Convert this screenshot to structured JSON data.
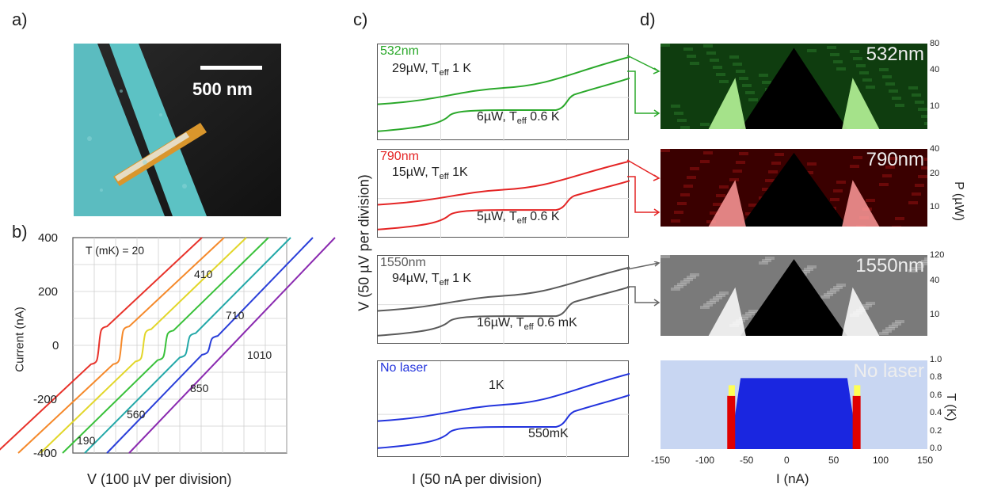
{
  "panels": {
    "a": "a)",
    "b": "b)",
    "c": "c)",
    "d": "d)"
  },
  "sem": {
    "scale_label": "500 nm"
  },
  "panel_b": {
    "temp_header": "T (mK) = 20",
    "temp_labels": [
      "190",
      "410",
      "560",
      "710",
      "850",
      "1010"
    ],
    "ylabel": "Current (nA)",
    "xlabel": "V (100 µV per division)",
    "yticks": [
      "400",
      "200",
      "0",
      "-200",
      "-400"
    ]
  },
  "chart_data": [
    {
      "type": "line",
      "title": "",
      "ylabel": "Current (nA)",
      "xlabel": "V (100 µV per division)",
      "ylim": [
        -400,
        400
      ],
      "yticks": [
        400,
        200,
        0,
        -200,
        -400
      ],
      "series": [
        {
          "name": "20",
          "color": "#e8322a",
          "plateau": 70
        },
        {
          "name": "190",
          "color": "#f5892a",
          "plateau": 70
        },
        {
          "name": "410",
          "color": "#e2d62a",
          "plateau": 60
        },
        {
          "name": "560",
          "color": "#39c13a",
          "plateau": 55
        },
        {
          "name": "710",
          "color": "#22a8a8",
          "plateau": 45
        },
        {
          "name": "850",
          "color": "#2a3fd9",
          "plateau": 35
        },
        {
          "name": "1010",
          "color": "#8a2ab0",
          "plateau": 0
        }
      ]
    },
    {
      "type": "line",
      "xlabel": "I (50 nA per division)",
      "ylabel": "V (50 µV per division)",
      "series": [
        {
          "name": "532nm",
          "color": "#2aa82a",
          "upper": "29µW, T",
          "upper_sub": "eff",
          "upper_end": " 1 K",
          "lower": "6µW, T",
          "lower_sub": "eff",
          "lower_end": " 0.6 K"
        },
        {
          "name": "790nm",
          "color": "#e42424",
          "upper": "15µW, T",
          "upper_sub": "eff",
          "upper_end": " 1K",
          "lower": "5µW, T",
          "lower_sub": "eff",
          "lower_end": " 0.6 K"
        },
        {
          "name": "1550nm",
          "color": "#5a5a5a",
          "upper": "94µW, T",
          "upper_sub": "eff",
          "upper_end": " 1 K",
          "lower": "16µW, T",
          "lower_sub": "eff",
          "lower_end": " 0.6 mK"
        },
        {
          "name": "No laser",
          "color": "#2233dd",
          "upper": "1K",
          "upper_sub": "",
          "upper_end": "",
          "lower": "550mK",
          "lower_sub": "",
          "lower_end": ""
        }
      ]
    },
    {
      "type": "heatmap",
      "xlabel": "I (nA)",
      "xlim": [
        -150,
        150
      ],
      "xticks": [
        "-150",
        "-100",
        "-50",
        "0",
        "50",
        "100",
        "150"
      ],
      "maps": [
        {
          "label": "532nm",
          "ytick_labels": [
            "80",
            "40",
            "10"
          ]
        },
        {
          "label": "790nm",
          "ytick_labels": [
            "40",
            "20",
            "10"
          ]
        },
        {
          "label": "1550nm",
          "ytick_labels": [
            "120",
            "40",
            "10"
          ]
        },
        {
          "label": "No laser",
          "ytick_labels": [
            "1.0",
            "0.8",
            "0.6",
            "0.4",
            "0.2",
            "0.0"
          ]
        }
      ],
      "ylabel_power": "P (µW)",
      "ylabel_temp": "T (K)"
    }
  ]
}
